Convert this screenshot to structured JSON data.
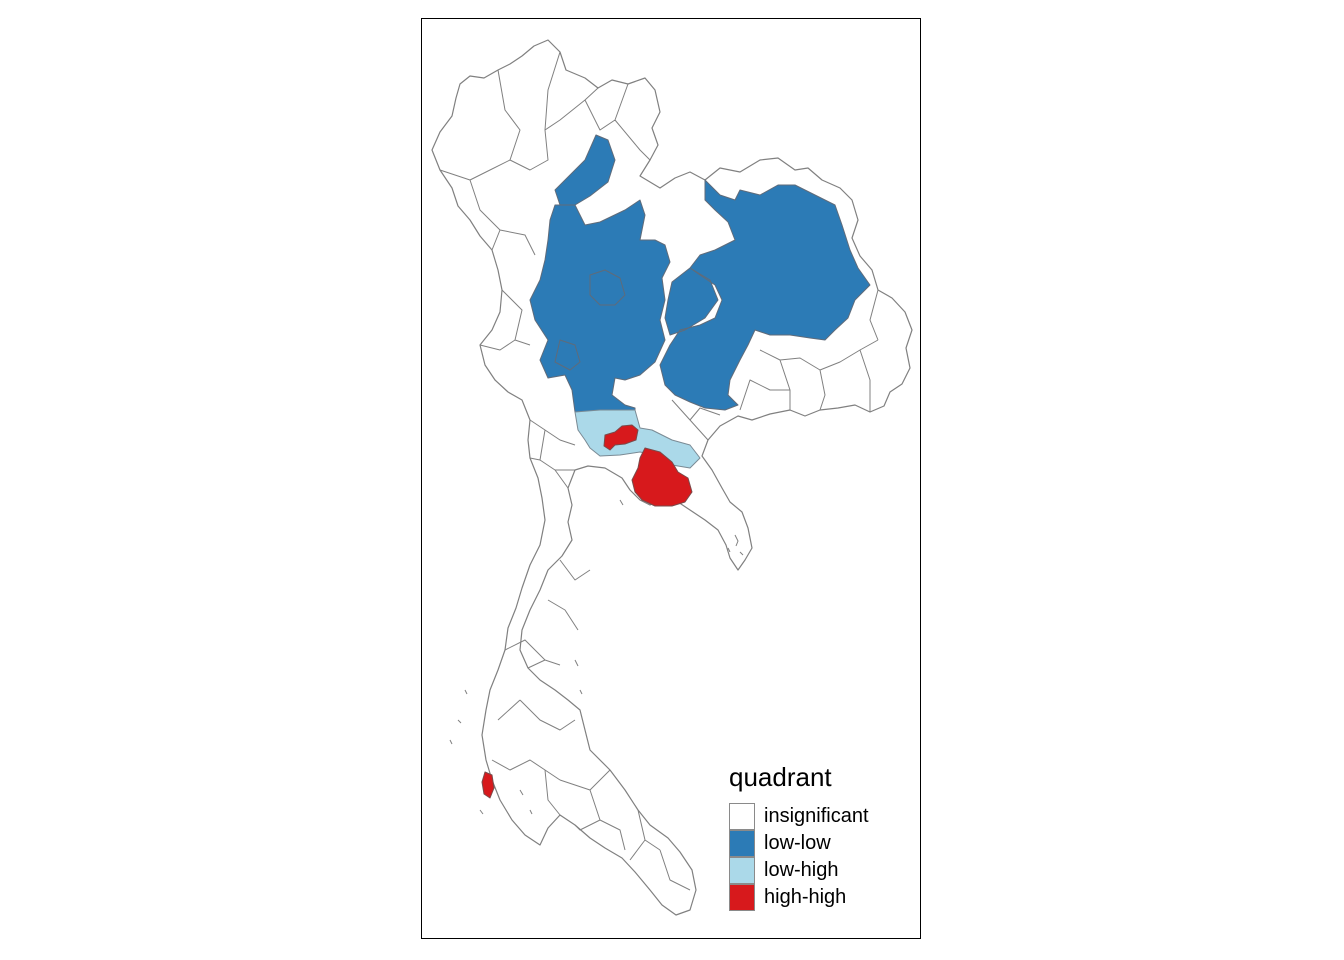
{
  "map": {
    "legend": {
      "title": "quadrant",
      "items": [
        {
          "label": "insignificant",
          "color": "#FFFFFF"
        },
        {
          "label": "low-low",
          "color": "#2C7BB6"
        },
        {
          "label": "low-high",
          "color": "#ABD9E9"
        },
        {
          "label": "high-high",
          "color": "#D7191C"
        }
      ]
    },
    "border_color": "#808080"
  }
}
